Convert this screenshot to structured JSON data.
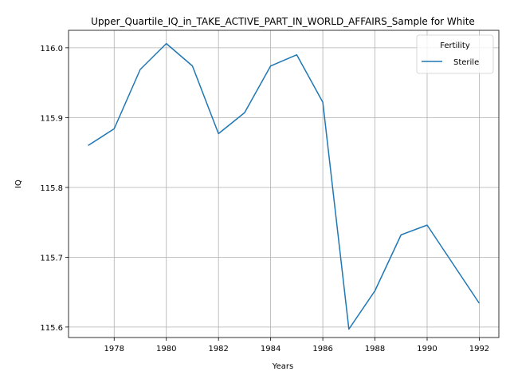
{
  "chart_data": {
    "type": "line",
    "title": "Upper_Quartile_IQ_in_TAKE_ACTIVE_PART_IN_WORLD_AFFAIRS_Sample for White",
    "xlabel": "Years",
    "ylabel": "IQ",
    "xlim": [
      1976.25,
      1992.75
    ],
    "ylim": [
      115.585,
      116.025
    ],
    "xticks": [
      1978,
      1980,
      1982,
      1984,
      1986,
      1988,
      1990,
      1992
    ],
    "yticks": [
      115.6,
      115.7,
      115.8,
      115.9,
      116.0
    ],
    "ytick_labels": [
      "115.6",
      "115.7",
      "115.8",
      "115.9",
      "116.0"
    ],
    "grid": true,
    "legend": {
      "title": "Fertility",
      "placement": "top-right"
    },
    "series": [
      {
        "name": "Sterile",
        "color": "#1f77b4",
        "x": [
          1977,
          1978,
          1979,
          1980,
          1981,
          1982,
          1983,
          1984,
          1985,
          1986,
          1987,
          1988,
          1989,
          1990,
          1991,
          1992
        ],
        "y": [
          115.86,
          115.884,
          115.969,
          116.006,
          115.974,
          115.877,
          115.907,
          115.974,
          115.99,
          115.922,
          115.597,
          115.652,
          115.732,
          115.746,
          115.69,
          115.634
        ]
      }
    ]
  }
}
